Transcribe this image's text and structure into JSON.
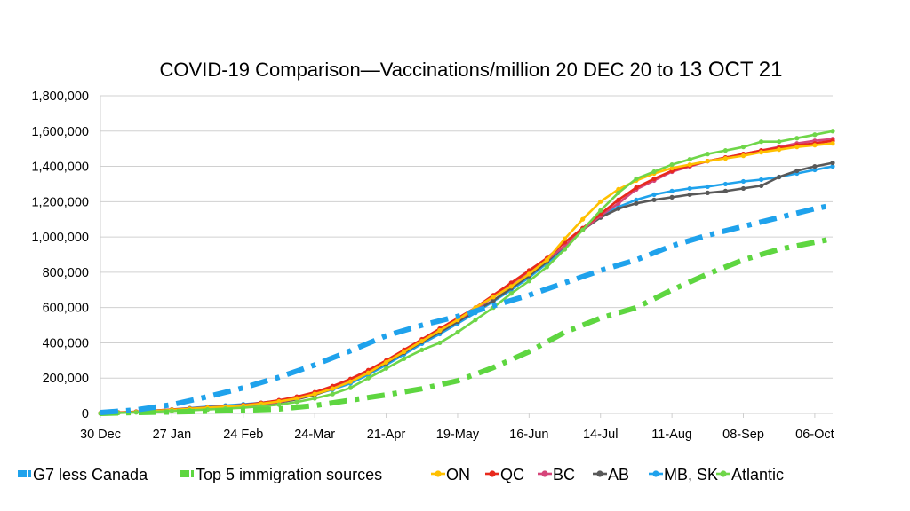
{
  "chart_data": {
    "type": "line",
    "title": "COVID-19 Comparison—Vaccinations/million 20 DEC 20 to",
    "title_suffix": "13 OCT 21",
    "xlabel": "",
    "ylabel": "",
    "y_ticks": [
      "0",
      "200,000",
      "400,000",
      "600,000",
      "800,000",
      "1,000,000",
      "1,200,000",
      "1,400,000",
      "1,600,000",
      "1,800,000"
    ],
    "ylim": [
      0,
      1800000
    ],
    "x_ticks": [
      "30 Dec",
      "27 Jan",
      "24 Feb",
      "24-Mar",
      "21-Apr",
      "19-May",
      "16-Jun",
      "14-Jul",
      "11-Aug",
      "08-Sep",
      "06-Oct"
    ],
    "x_tick_weeks": [
      0,
      4,
      8,
      12,
      16,
      20,
      24,
      28,
      32,
      36,
      40
    ],
    "xlim_weeks": [
      0,
      41
    ],
    "grid": "horizontal",
    "legend_position": "bottom",
    "series": [
      {
        "name": "G7 less Canada",
        "color": "#1fa2ec",
        "style": "dashdot-thick",
        "weeks": [
          0,
          2,
          4,
          6,
          8,
          10,
          12,
          14,
          16,
          18,
          20,
          22,
          24,
          26,
          28,
          30,
          32,
          34,
          36,
          38,
          40,
          41
        ],
        "values": [
          5000,
          20000,
          50000,
          95000,
          145000,
          205000,
          275000,
          355000,
          440000,
          500000,
          550000,
          610000,
          670000,
          740000,
          810000,
          870000,
          950000,
          1010000,
          1060000,
          1110000,
          1160000,
          1180000
        ]
      },
      {
        "name": "Top 5 immigration sources",
        "color": "#5ed640",
        "style": "dashdot-thick",
        "weeks": [
          0,
          2,
          4,
          6,
          8,
          10,
          12,
          14,
          16,
          18,
          20,
          22,
          24,
          26,
          28,
          30,
          32,
          34,
          36,
          38,
          40,
          41
        ],
        "values": [
          0,
          5000,
          8000,
          12000,
          18000,
          25000,
          45000,
          75000,
          105000,
          140000,
          185000,
          260000,
          350000,
          460000,
          540000,
          600000,
          700000,
          790000,
          870000,
          930000,
          970000,
          990000
        ]
      },
      {
        "name": "ON",
        "color": "#ffc000",
        "marker": "circle",
        "weeks": [
          0,
          1,
          2,
          3,
          4,
          5,
          6,
          7,
          8,
          9,
          10,
          11,
          12,
          13,
          14,
          15,
          16,
          17,
          18,
          19,
          20,
          21,
          22,
          23,
          24,
          25,
          26,
          27,
          28,
          29,
          30,
          31,
          32,
          33,
          34,
          35,
          36,
          37,
          38,
          39,
          40,
          41
        ],
        "values": [
          1000,
          4000,
          8000,
          14000,
          20000,
          26000,
          32000,
          38000,
          45000,
          55000,
          68000,
          85000,
          110000,
          140000,
          180000,
          230000,
          290000,
          350000,
          410000,
          470000,
          530000,
          600000,
          660000,
          720000,
          790000,
          870000,
          990000,
          1100000,
          1200000,
          1270000,
          1320000,
          1360000,
          1390000,
          1410000,
          1430000,
          1445000,
          1460000,
          1480000,
          1495000,
          1510000,
          1520000,
          1530000
        ]
      },
      {
        "name": "QC",
        "color": "#e8291c",
        "marker": "circle",
        "weeks": [
          0,
          1,
          2,
          3,
          4,
          5,
          6,
          7,
          8,
          9,
          10,
          11,
          12,
          13,
          14,
          15,
          16,
          17,
          18,
          19,
          20,
          21,
          22,
          23,
          24,
          25,
          26,
          27,
          28,
          29,
          30,
          31,
          32,
          33,
          34,
          35,
          36,
          37,
          38,
          39,
          40,
          41
        ],
        "values": [
          2000,
          6000,
          10000,
          16000,
          22000,
          28000,
          34000,
          40000,
          48000,
          60000,
          75000,
          95000,
          120000,
          155000,
          195000,
          245000,
          300000,
          360000,
          420000,
          480000,
          540000,
          600000,
          670000,
          740000,
          810000,
          880000,
          970000,
          1050000,
          1130000,
          1210000,
          1280000,
          1330000,
          1375000,
          1405000,
          1430000,
          1450000,
          1470000,
          1490000,
          1505000,
          1520000,
          1530000,
          1545000
        ]
      },
      {
        "name": "BC",
        "color": "#d6457a",
        "marker": "circle",
        "weeks": [
          0,
          1,
          2,
          3,
          4,
          5,
          6,
          7,
          8,
          9,
          10,
          11,
          12,
          13,
          14,
          15,
          16,
          17,
          18,
          19,
          20,
          21,
          22,
          23,
          24,
          25,
          26,
          27,
          28,
          29,
          30,
          31,
          32,
          33,
          34,
          35,
          36,
          37,
          38,
          39,
          40,
          41
        ],
        "values": [
          1000,
          4000,
          8000,
          13000,
          18000,
          24000,
          30000,
          36000,
          42000,
          52000,
          65000,
          85000,
          110000,
          145000,
          185000,
          235000,
          290000,
          350000,
          410000,
          470000,
          530000,
          590000,
          660000,
          730000,
          800000,
          870000,
          950000,
          1040000,
          1120000,
          1190000,
          1270000,
          1320000,
          1370000,
          1400000,
          1430000,
          1450000,
          1470000,
          1490000,
          1510000,
          1530000,
          1545000,
          1555000
        ]
      },
      {
        "name": "AB",
        "color": "#595959",
        "marker": "circle",
        "weeks": [
          0,
          1,
          2,
          3,
          4,
          5,
          6,
          7,
          8,
          9,
          10,
          11,
          12,
          13,
          14,
          15,
          16,
          17,
          18,
          19,
          20,
          21,
          22,
          23,
          24,
          25,
          26,
          27,
          28,
          29,
          30,
          31,
          32,
          33,
          34,
          35,
          36,
          37,
          38,
          39,
          40,
          41
        ],
        "values": [
          1000,
          4000,
          8000,
          13000,
          18000,
          24000,
          30000,
          36000,
          42000,
          50000,
          62000,
          80000,
          105000,
          140000,
          180000,
          230000,
          285000,
          345000,
          405000,
          460000,
          520000,
          580000,
          640000,
          710000,
          780000,
          860000,
          950000,
          1040000,
          1110000,
          1160000,
          1190000,
          1210000,
          1225000,
          1240000,
          1250000,
          1260000,
          1275000,
          1290000,
          1340000,
          1375000,
          1400000,
          1420000
        ]
      },
      {
        "name": "MB, SK",
        "color": "#1fa2ec",
        "marker": "circle",
        "weeks": [
          0,
          1,
          2,
          3,
          4,
          5,
          6,
          7,
          8,
          9,
          10,
          11,
          12,
          13,
          14,
          15,
          16,
          17,
          18,
          19,
          20,
          21,
          22,
          23,
          24,
          25,
          26,
          27,
          28,
          29,
          30,
          31,
          32,
          33,
          34,
          35,
          36,
          37,
          38,
          39,
          40,
          41
        ],
        "values": [
          1000,
          5000,
          10000,
          16000,
          22000,
          30000,
          38000,
          45000,
          52000,
          60000,
          72000,
          88000,
          110000,
          135000,
          170000,
          220000,
          275000,
          335000,
          395000,
          450000,
          510000,
          570000,
          635000,
          700000,
          770000,
          850000,
          940000,
          1040000,
          1120000,
          1170000,
          1210000,
          1240000,
          1260000,
          1275000,
          1285000,
          1300000,
          1315000,
          1325000,
          1340000,
          1360000,
          1380000,
          1400000
        ]
      },
      {
        "name": "Atlantic",
        "color": "#6fd649",
        "marker": "circle",
        "weeks": [
          0,
          1,
          2,
          3,
          4,
          5,
          6,
          7,
          8,
          9,
          10,
          11,
          12,
          13,
          14,
          15,
          16,
          17,
          18,
          19,
          20,
          21,
          22,
          23,
          24,
          25,
          26,
          27,
          28,
          29,
          30,
          31,
          32,
          33,
          34,
          35,
          36,
          37,
          38,
          39,
          40,
          41
        ],
        "values": [
          1000,
          3000,
          6000,
          10000,
          14000,
          18000,
          22000,
          27000,
          32000,
          40000,
          50000,
          65000,
          85000,
          110000,
          145000,
          200000,
          255000,
          310000,
          360000,
          400000,
          460000,
          530000,
          600000,
          680000,
          750000,
          830000,
          930000,
          1040000,
          1150000,
          1250000,
          1330000,
          1370000,
          1410000,
          1440000,
          1470000,
          1490000,
          1510000,
          1540000,
          1540000,
          1560000,
          1580000,
          1600000
        ]
      }
    ]
  }
}
